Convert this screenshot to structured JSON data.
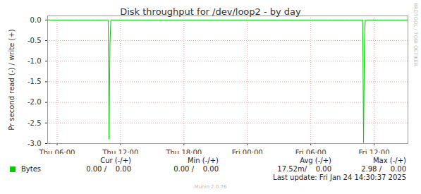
{
  "chart_data": {
    "type": "line",
    "title": "Disk throughput for /dev/loop2 - by day",
    "y_label": "Pr second read (-) / write (+)",
    "x": [
      5.1,
      10.833,
      10.917,
      11.0,
      11.083,
      34.917,
      35.0,
      35.083,
      35.167,
      39.2
    ],
    "series": [
      {
        "name": "Bytes",
        "color": "#00cc00",
        "values": [
          0,
          0,
          -2.9,
          -0.6,
          0,
          0,
          -2.98,
          -0.45,
          0,
          0
        ]
      }
    ],
    "xlim": [
      5.1,
      39.2
    ],
    "xticks": [
      {
        "value": 6,
        "label": "Thu 06:00"
      },
      {
        "value": 12,
        "label": "Thu 12:00"
      },
      {
        "value": 18,
        "label": "Thu 18:00"
      },
      {
        "value": 24,
        "label": "Fri 00:00"
      },
      {
        "value": 30,
        "label": "Fri 06:00"
      },
      {
        "value": 36,
        "label": "Fri 12:00"
      }
    ],
    "ylim": [
      -3.0,
      0.1
    ],
    "yticks": [
      {
        "value": 0,
        "label": "0.0"
      },
      {
        "value": -0.5,
        "label": "-0.5"
      },
      {
        "value": -1,
        "label": "-1.0"
      },
      {
        "value": -1.5,
        "label": "-1.5"
      },
      {
        "value": -2,
        "label": "-2.0"
      },
      {
        "value": -2.5,
        "label": "-2.5"
      },
      {
        "value": -3,
        "label": "-3.0"
      }
    ],
    "grid": true,
    "legend_table": {
      "headers": [
        "Cur (-/+)",
        "Min (-/+)",
        "Avg (-/+)",
        "Max (-/+)"
      ],
      "rows": [
        {
          "name": "Bytes",
          "cells": [
            "0.00 /    0.00",
            "0.00 /    0.00",
            "17.52m/    0.00",
            "2.98 /    0.00"
          ]
        }
      ]
    },
    "last_update": "Last update: Fri Jan 24 14:30:37 2025",
    "footer": "Munin 2.0.76",
    "watermark": "RRDTOOL / TOBI OETIKER"
  }
}
